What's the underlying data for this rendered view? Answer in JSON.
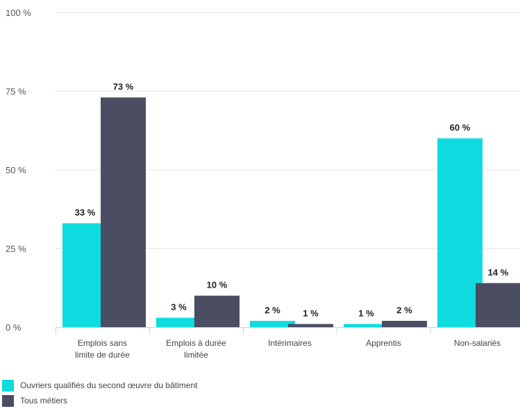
{
  "chart_data": {
    "type": "bar",
    "categories": [
      [
        "Emplois sans",
        "limite de durée"
      ],
      [
        "Emplois à durée",
        "limitée"
      ],
      [
        "Intérimaires"
      ],
      [
        "Apprentis"
      ],
      [
        "Non-salariés"
      ]
    ],
    "series": [
      {
        "name": "Ouvriers qualifiés du second œuvre du bâtiment",
        "values": [
          33,
          3,
          2,
          1,
          60
        ],
        "color": "#10dbe0"
      },
      {
        "name": "Tous métiers",
        "values": [
          73,
          10,
          1,
          2,
          14
        ],
        "color": "#4b4d63"
      }
    ],
    "value_labels": [
      [
        "33 %",
        "3 %",
        "2 %",
        "1 %",
        "60 %"
      ],
      [
        "73 %",
        "10 %",
        "1 %",
        "2 %",
        "14 %"
      ]
    ],
    "yticks": [
      0,
      25,
      50,
      75,
      100
    ],
    "ytick_labels": [
      "0 %",
      "25 %",
      "50 %",
      "75 %",
      "100 %"
    ],
    "ylim": [
      0,
      100
    ],
    "grid": true,
    "legend_position": "bottom-left"
  }
}
